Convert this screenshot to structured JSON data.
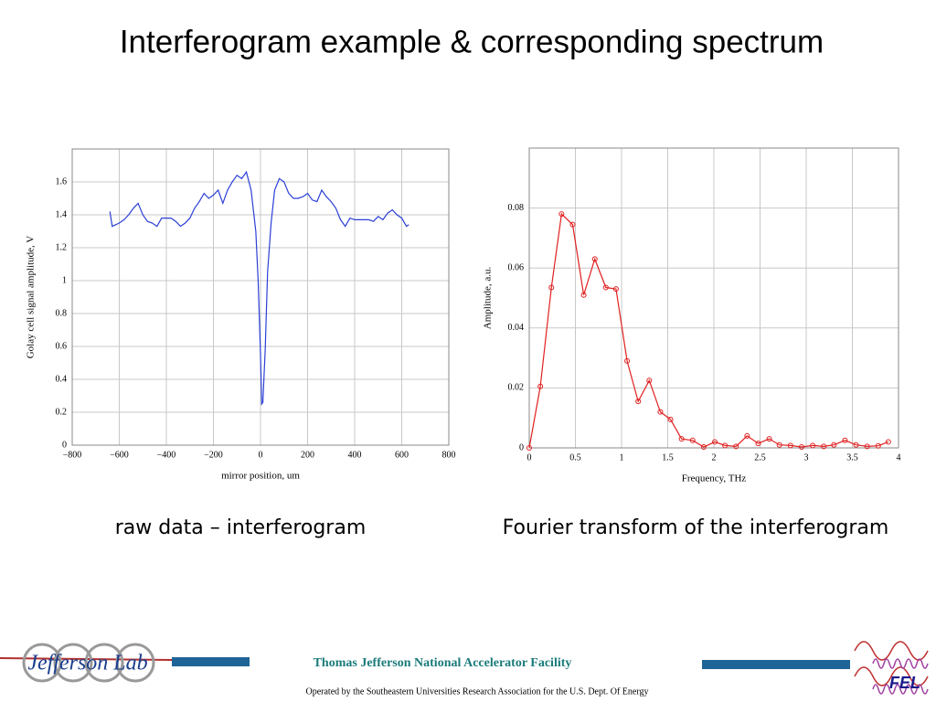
{
  "title": "Interferogram example & corresponding spectrum",
  "chart_data": [
    {
      "type": "line",
      "x_label": "mirror position, um",
      "y_label": "Golay cell signal amplitude, V",
      "xlim": [
        -800,
        800
      ],
      "ylim": [
        0,
        1.8
      ],
      "grid": true,
      "xticks": [
        {
          "value": -800,
          "label": "−800"
        },
        {
          "value": -600,
          "label": "−600"
        },
        {
          "value": -400,
          "label": "−400"
        },
        {
          "value": -200,
          "label": "−200"
        },
        0,
        200,
        400,
        600,
        800
      ],
      "yticks": [
        0,
        0.2,
        0.4,
        0.6,
        0.8,
        1,
        1.2,
        1.4,
        1.6
      ],
      "x": [
        -640,
        -630,
        -600,
        -580,
        -560,
        -540,
        -520,
        -500,
        -480,
        -460,
        -440,
        -420,
        -400,
        -380,
        -360,
        -340,
        -320,
        -300,
        -280,
        -260,
        -240,
        -220,
        -200,
        -180,
        -160,
        -140,
        -120,
        -100,
        -80,
        -60,
        -40,
        -20,
        -10,
        0,
        5,
        10,
        20,
        30,
        45,
        60,
        80,
        100,
        120,
        140,
        160,
        180,
        200,
        220,
        240,
        260,
        280,
        300,
        320,
        340,
        360,
        380,
        400,
        420,
        440,
        460,
        480,
        500,
        520,
        540,
        560,
        580,
        600,
        620,
        630
      ],
      "series": [
        {
          "color": "#2b3fd6",
          "values": [
            1.42,
            1.33,
            1.35,
            1.37,
            1.4,
            1.44,
            1.47,
            1.4,
            1.36,
            1.35,
            1.33,
            1.38,
            1.38,
            1.38,
            1.36,
            1.33,
            1.35,
            1.38,
            1.44,
            1.48,
            1.53,
            1.5,
            1.52,
            1.55,
            1.47,
            1.55,
            1.6,
            1.64,
            1.62,
            1.66,
            1.55,
            1.3,
            1.0,
            0.55,
            0.25,
            0.26,
            0.58,
            1.05,
            1.35,
            1.55,
            1.62,
            1.6,
            1.53,
            1.5,
            1.5,
            1.51,
            1.53,
            1.49,
            1.48,
            1.55,
            1.51,
            1.48,
            1.44,
            1.37,
            1.33,
            1.38,
            1.37,
            1.37,
            1.37,
            1.37,
            1.36,
            1.39,
            1.37,
            1.41,
            1.43,
            1.4,
            1.38,
            1.33,
            1.34
          ]
        }
      ]
    },
    {
      "type": "line",
      "markers": true,
      "x_label": "Frequency, THz",
      "y_label": "Amplitude, a.u.",
      "xlim": [
        0,
        4
      ],
      "ylim": [
        0,
        0.1
      ],
      "grid": true,
      "xticks": [
        0,
        0.5,
        1,
        1.5,
        2,
        2.5,
        3,
        3.5,
        4
      ],
      "yticks": [
        0,
        0.02,
        0.04,
        0.06,
        0.08
      ],
      "x": [
        0,
        0.12,
        0.24,
        0.35,
        0.47,
        0.59,
        0.71,
        0.83,
        0.94,
        1.06,
        1.18,
        1.3,
        1.42,
        1.53,
        1.65,
        1.77,
        1.89,
        2.01,
        2.12,
        2.24,
        2.36,
        2.48,
        2.6,
        2.71,
        2.83,
        2.95,
        3.07,
        3.19,
        3.3,
        3.42,
        3.54,
        3.66,
        3.78,
        3.89
      ],
      "series": [
        {
          "color": "#e02020",
          "values": [
            0,
            0.0205,
            0.0535,
            0.078,
            0.0745,
            0.051,
            0.063,
            0.0535,
            0.053,
            0.029,
            0.0155,
            0.0225,
            0.012,
            0.0095,
            0.003,
            0.0025,
            0.0003,
            0.002,
            0.0008,
            0.0005,
            0.004,
            0.0015,
            0.003,
            0.001,
            0.0008,
            0.0003,
            0.0008,
            0.0005,
            0.001,
            0.0025,
            0.001,
            0.0005,
            0.0007,
            0.002
          ]
        }
      ]
    }
  ],
  "captions": [
    "raw data – interferogram",
    "Fourier transform of the interferogram"
  ],
  "footer": {
    "facility": "Thomas Jefferson National Accelerator Facility",
    "operated_by": "Operated by the Southeastern Universities Research Association for the U.S. Dept. Of Energy",
    "left_logo": "Jefferson Lab",
    "right_logo": "FEL"
  }
}
